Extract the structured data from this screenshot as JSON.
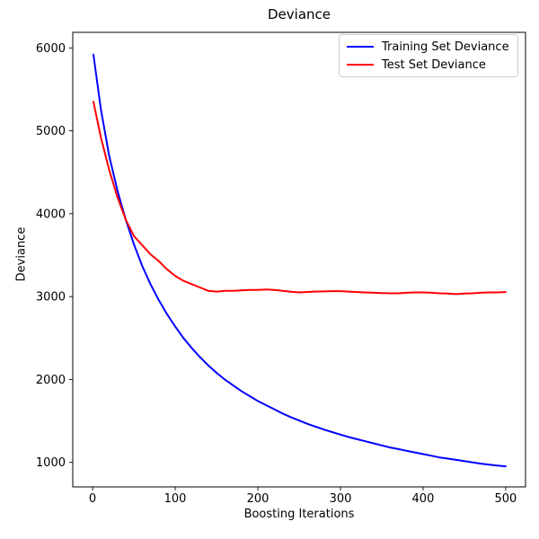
{
  "chart_data": {
    "type": "line",
    "title": "Deviance",
    "xlabel": "Boosting Iterations",
    "ylabel": "Deviance",
    "xlim": [
      -24,
      524
    ],
    "ylim": [
      704,
      6188
    ],
    "xticks": [
      0,
      100,
      200,
      300,
      400,
      500
    ],
    "yticks": [
      1000,
      2000,
      3000,
      4000,
      5000,
      6000
    ],
    "grid": false,
    "legend_position": "upper-right",
    "legend_border_color": "#cccccc",
    "axis_color": "#000000",
    "background_color": "#ffffff",
    "x": [
      1,
      10,
      20,
      30,
      40,
      50,
      60,
      70,
      80,
      90,
      100,
      110,
      120,
      130,
      140,
      150,
      160,
      170,
      180,
      190,
      200,
      210,
      220,
      230,
      240,
      250,
      260,
      270,
      280,
      290,
      300,
      310,
      320,
      330,
      340,
      350,
      360,
      370,
      380,
      390,
      400,
      410,
      420,
      430,
      440,
      450,
      460,
      470,
      480,
      490,
      500
    ],
    "series": [
      {
        "name": "Training Set Deviance",
        "color": "#0000ff",
        "values": [
          5920,
          5260,
          4700,
          4280,
          3930,
          3630,
          3370,
          3150,
          2960,
          2790,
          2640,
          2500,
          2380,
          2270,
          2170,
          2080,
          2000,
          1930,
          1860,
          1800,
          1740,
          1690,
          1640,
          1590,
          1545,
          1505,
          1465,
          1430,
          1395,
          1365,
          1335,
          1305,
          1280,
          1255,
          1230,
          1205,
          1180,
          1160,
          1140,
          1120,
          1100,
          1080,
          1060,
          1045,
          1030,
          1015,
          1000,
          985,
          972,
          962,
          952
        ]
      },
      {
        "name": "Test Set Deviance",
        "color": "#ff0000",
        "values": [
          5350,
          4920,
          4530,
          4200,
          3930,
          3730,
          3620,
          3510,
          3430,
          3330,
          3250,
          3190,
          3150,
          3110,
          3070,
          3060,
          3070,
          3070,
          3075,
          3080,
          3080,
          3085,
          3080,
          3070,
          3058,
          3050,
          3056,
          3060,
          3062,
          3066,
          3066,
          3060,
          3055,
          3050,
          3046,
          3042,
          3040,
          3040,
          3046,
          3050,
          3050,
          3046,
          3040,
          3036,
          3030,
          3036,
          3040,
          3046,
          3050,
          3050,
          3055
        ]
      }
    ]
  }
}
